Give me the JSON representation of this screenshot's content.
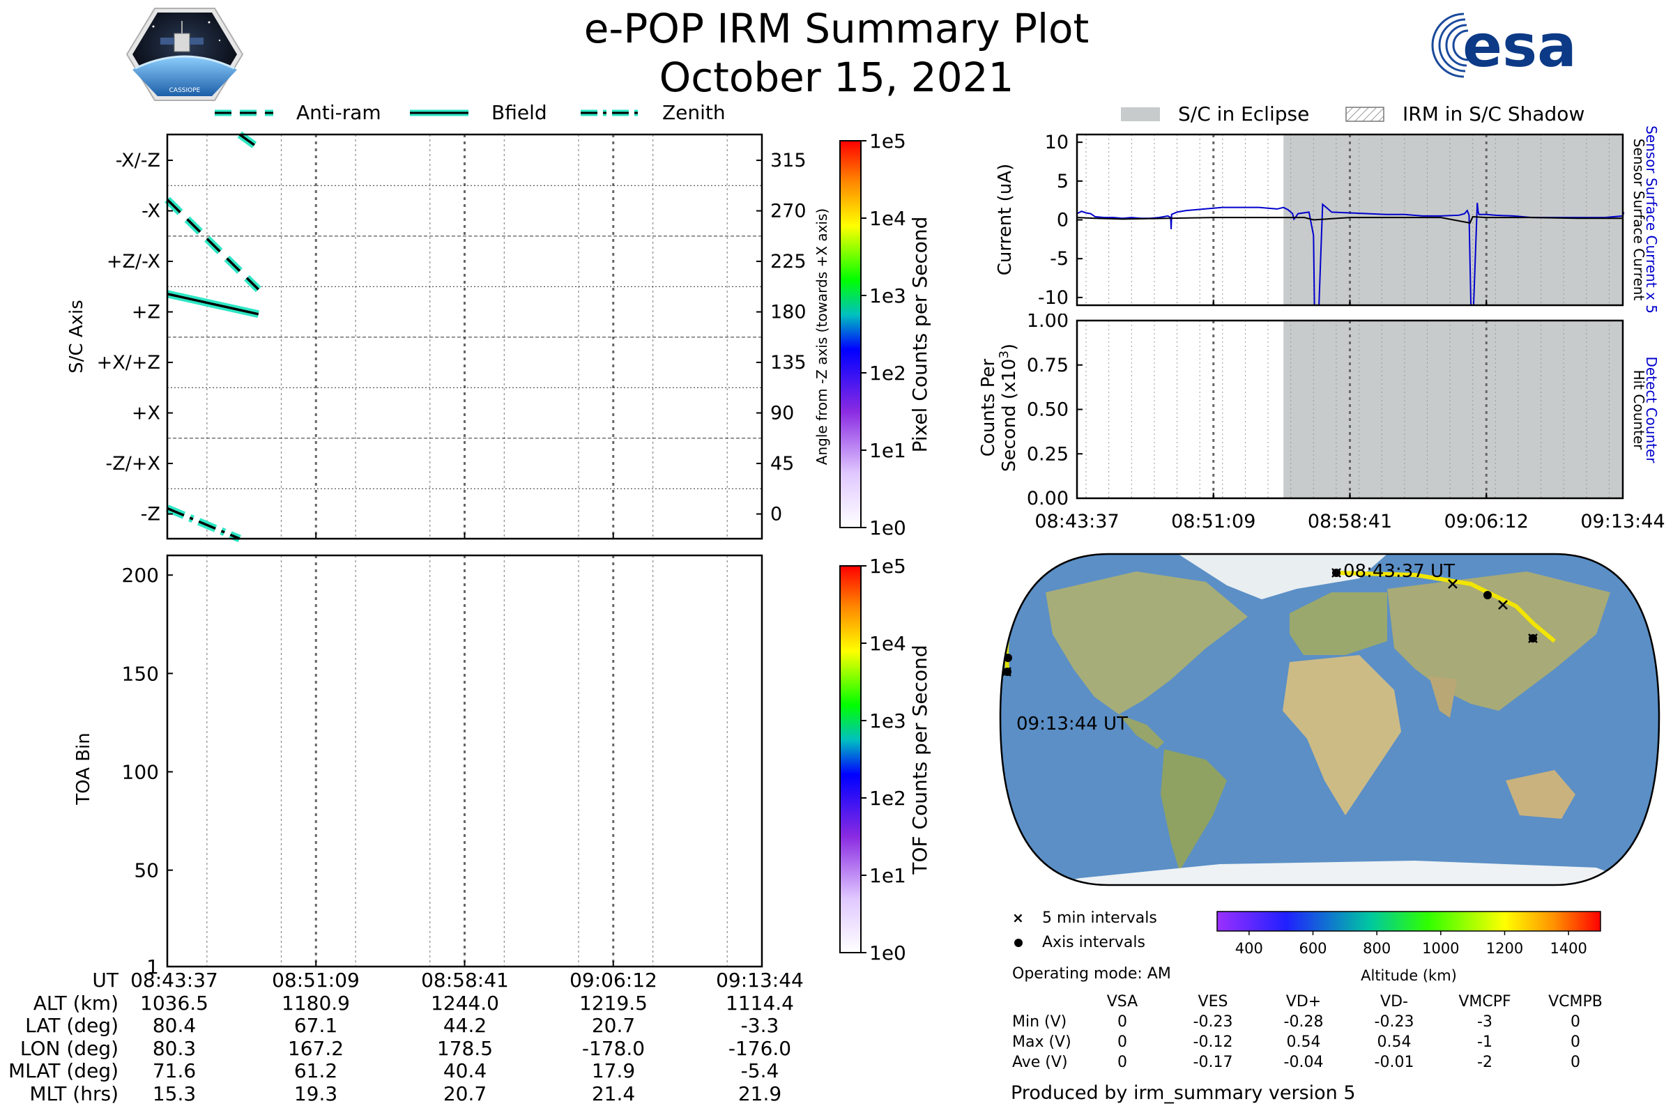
{
  "header": {
    "title": "e-POP IRM Summary Plot",
    "date": "October 15, 2021",
    "logo_left_text": "CASSIOPE",
    "logo_right_text": "esa"
  },
  "colors": {
    "cyan": "#2ee6c4",
    "blue": "#0000cc",
    "eclipse": "#c8cbcb"
  },
  "top_legend": {
    "antiram": "Anti-ram",
    "bfield": "Bfield",
    "zenith": "Zenith"
  },
  "right_legend": {
    "eclipse": "S/C in Eclipse",
    "shadow": "IRM in S/C Shadow"
  },
  "chart_data": [
    {
      "type": "line",
      "id": "sc_axis",
      "ylabel": "S/C Axis",
      "ylabel_right": "Angle from -Z axis (towards +X axis)",
      "ylim": [
        -22,
        338
      ],
      "axis_categories": [
        "-X/-Z",
        "-X",
        "+Z/-X",
        "+Z",
        "+X/+Z",
        "+X",
        "-Z/+X",
        "-Z"
      ],
      "axis_category_values": [
        315,
        270,
        225,
        180,
        135,
        90,
        45,
        0
      ],
      "right_ticks": [
        "315",
        "270",
        "225",
        "180",
        "135",
        "90",
        "45",
        "0"
      ],
      "series": [
        {
          "name": "Anti-ram",
          "segments": [
            [
              [
                0.0,
                280
              ],
              [
                9.2,
                200
              ]
            ],
            [
              [
                7.3,
                338
              ],
              [
                9.2,
                326
              ]
            ]
          ]
        },
        {
          "name": "Bfield",
          "segments": [
            [
              [
                0.0,
                196
              ],
              [
                9.2,
                178
              ]
            ]
          ]
        },
        {
          "name": "Zenith",
          "segments": [
            [
              [
                0.0,
                5
              ],
              [
                7.3,
                -22
              ]
            ]
          ]
        }
      ],
      "colorbar_label": "Pixel Counts per Second",
      "colorbar_ticks": [
        "1e5",
        "1e4",
        "1e3",
        "1e2",
        "1e1",
        "1e0"
      ]
    },
    {
      "type": "heatmap",
      "id": "toa",
      "ylabel": "TOA Bin",
      "ylim": [
        1,
        210
      ],
      "yticks": [
        "200",
        "150",
        "100",
        "50",
        "1"
      ],
      "colorbar_label": "TOF Counts per Second",
      "colorbar_ticks": [
        "1e5",
        "1e4",
        "1e3",
        "1e2",
        "1e1",
        "1e0"
      ]
    },
    {
      "type": "line",
      "id": "current",
      "ylabel": "Current (uA)",
      "right_label_top": "Sensor Surface Current x 5",
      "right_label_bottom": "Sensor Surface Current",
      "ylim": [
        -11,
        11
      ],
      "yticks": [
        "10",
        "5",
        "0",
        "-5",
        "-10"
      ],
      "eclipse_start_min": 22.7,
      "series": [
        {
          "name": "Sensor Surface Current x 5",
          "color": "#0000cc",
          "x": [
            0,
            0.5,
            1.0,
            1.5,
            2.0,
            3,
            4,
            5,
            6,
            7,
            8,
            9,
            10,
            10.3,
            10.35,
            10.4,
            11,
            12,
            13,
            14,
            15,
            16,
            17,
            18,
            19,
            20,
            21,
            22,
            22.7,
            23.2,
            23.7,
            23.85,
            24.0,
            24.3,
            25.5,
            26.0,
            26.1,
            26.6,
            27,
            28,
            30,
            32,
            34,
            36,
            38,
            40,
            42,
            42.6,
            42.9,
            43.1,
            43.3,
            43.6,
            44.0,
            44.1,
            44.2,
            45,
            46,
            48,
            50,
            52,
            54,
            56,
            58,
            60,
            60.1
          ],
          "y": [
            0.8,
            1.1,
            0.9,
            0.8,
            0.4,
            0.3,
            0.3,
            0.2,
            0.3,
            0.2,
            0.2,
            0.3,
            0.5,
            0.3,
            -1.2,
            0.7,
            1.0,
            1.2,
            1.3,
            1.4,
            1.5,
            1.6,
            1.6,
            1.6,
            1.6,
            1.6,
            1.5,
            1.4,
            1.6,
            1.3,
            0.8,
            0.1,
            0.3,
            0.8,
            1.0,
            -2.0,
            -11,
            -11,
            2.0,
            1.0,
            0.9,
            0.8,
            0.7,
            0.7,
            0.5,
            0.5,
            0.6,
            0.8,
            1.2,
            0.6,
            -11,
            -11,
            2.2,
            1.0,
            0.7,
            0.7,
            0.6,
            0.5,
            0.3,
            0.3,
            0.3,
            0.3,
            0.3,
            0.5,
            1.0
          ]
        },
        {
          "name": "Sensor Surface Current",
          "color": "#000000",
          "x": [
            0,
            2,
            5,
            10,
            15,
            20,
            25,
            26.0,
            30,
            35,
            40,
            43.2,
            43.5,
            45,
            50,
            55,
            60
          ],
          "y": [
            0.3,
            0.2,
            0.1,
            0.2,
            0.3,
            0.3,
            0.3,
            0.0,
            0.3,
            0.3,
            0.3,
            -0.4,
            0.4,
            0.3,
            0.3,
            0.2,
            0.2
          ]
        }
      ]
    },
    {
      "type": "line",
      "id": "counts",
      "ylabel": "Counts Per Second (x10³)",
      "right_label_top": "Detect Counter",
      "right_label_bottom": "Hit Counter",
      "ylim": [
        0,
        1.0
      ],
      "yticks": [
        "1.00",
        "0.75",
        "0.50",
        "0.25",
        "0.00"
      ],
      "xticks": [
        "08:43:37",
        "08:51:09",
        "08:58:41",
        "09:06:12",
        "09:13:44"
      ],
      "series": [
        {
          "name": "Detect Counter",
          "color": "#0000cc",
          "x": [
            0,
            60
          ],
          "y": [
            0,
            0
          ]
        }
      ]
    }
  ],
  "map": {
    "start_label": "08:43:37 UT",
    "end_label": "09:13:44 UT"
  },
  "map_legend": {
    "five_min": "5 min intervals",
    "axis_intervals": "Axis intervals",
    "operating_mode": "Operating mode: AM"
  },
  "altitude_bar": {
    "label": "Altitude (km)",
    "ticks": [
      "400",
      "600",
      "800",
      "1000",
      "1200",
      "1400"
    ]
  },
  "ephemeris": {
    "row_labels": [
      "UT",
      "ALT (km)",
      "LAT (deg)",
      "LON (deg)",
      "MLAT (deg)",
      "MLT (hrs)"
    ],
    "columns": [
      [
        "08:43:37",
        "1036.5",
        "80.4",
        "80.3",
        "71.6",
        "15.3"
      ],
      [
        "08:51:09",
        "1180.9",
        "67.1",
        "167.2",
        "61.2",
        "19.3"
      ],
      [
        "08:58:41",
        "1244.0",
        "44.2",
        "178.5",
        "40.4",
        "20.7"
      ],
      [
        "09:06:12",
        "1219.5",
        "20.7",
        "-178.0",
        "17.9",
        "21.4"
      ],
      [
        "09:13:44",
        "1114.4",
        "-3.3",
        "-176.0",
        "-5.4",
        "21.9"
      ]
    ]
  },
  "voltages": {
    "headers": [
      "VSA",
      "VES",
      "VD+",
      "VD-",
      "VMCPF",
      "VCMPB"
    ],
    "rows": [
      {
        "label": "Min (V)",
        "values": [
          "0",
          "-0.23",
          "-0.28",
          "-0.23",
          "-3",
          "0"
        ]
      },
      {
        "label": "Max (V)",
        "values": [
          "0",
          "-0.12",
          "0.54",
          "0.54",
          "-1",
          "0"
        ]
      },
      {
        "label": "Ave (V)",
        "values": [
          "0",
          "-0.17",
          "-0.04",
          "-0.01",
          "-2",
          "0"
        ]
      }
    ]
  },
  "footer": "Produced by irm_summary version 5"
}
